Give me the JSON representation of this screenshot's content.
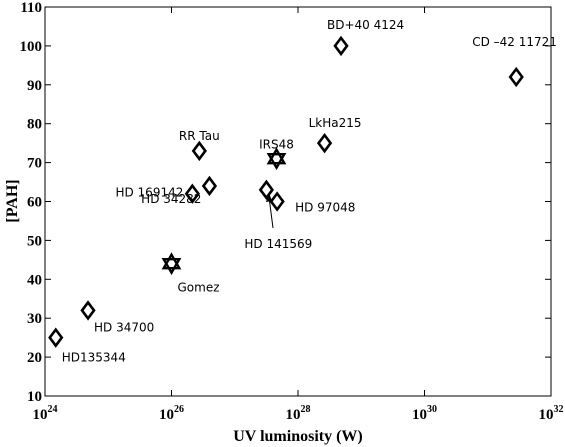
{
  "chart_data": {
    "type": "scatter",
    "xlabel": "UV luminosity (W)",
    "ylabel": "[PAH]",
    "xscale": "log",
    "xlim_exponent": [
      24,
      32
    ],
    "ylim": [
      10,
      110
    ],
    "x_ticks": [
      {
        "base": "10",
        "exp": "24",
        "value": 24
      },
      {
        "base": "10",
        "exp": "26",
        "value": 26
      },
      {
        "base": "10",
        "exp": "28",
        "value": 28
      },
      {
        "base": "10",
        "exp": "30",
        "value": 30
      },
      {
        "base": "10",
        "exp": "32",
        "value": 32
      }
    ],
    "y_ticks": [
      "10",
      "20",
      "30",
      "40",
      "50",
      "60",
      "70",
      "80",
      "90",
      "100",
      "110"
    ],
    "grid": false,
    "legend": "none",
    "marker_color": "#000000",
    "points": [
      {
        "label": "HD135344",
        "log_x": 24.17,
        "y": 25,
        "marker": "diamond"
      },
      {
        "label": "HD 34700",
        "log_x": 24.68,
        "y": 32,
        "marker": "diamond"
      },
      {
        "label": "Gomez",
        "log_x": 26.0,
        "y": 44,
        "marker": "star"
      },
      {
        "label": "HD 169142",
        "log_x": 26.33,
        "y": 62,
        "marker": "diamond"
      },
      {
        "label": "RR Tau",
        "log_x": 26.44,
        "y": 73,
        "marker": "diamond"
      },
      {
        "label": "HD 34282",
        "log_x": 26.6,
        "y": 64,
        "marker": "diamond"
      },
      {
        "label": "HD 141569",
        "log_x": 27.5,
        "y": 63,
        "marker": "diamond"
      },
      {
        "label": "HD 97048",
        "log_x": 27.67,
        "y": 60,
        "marker": "diamond"
      },
      {
        "label": "IRS48",
        "log_x": 27.66,
        "y": 71,
        "marker": "star"
      },
      {
        "label": "LkHa215",
        "log_x": 28.42,
        "y": 75,
        "marker": "diamond"
      },
      {
        "label": "BD+40 4124",
        "log_x": 28.68,
        "y": 100,
        "marker": "diamond"
      },
      {
        "label": "CD –42 11721",
        "log_x": 31.45,
        "y": 92,
        "marker": "diamond"
      }
    ]
  }
}
